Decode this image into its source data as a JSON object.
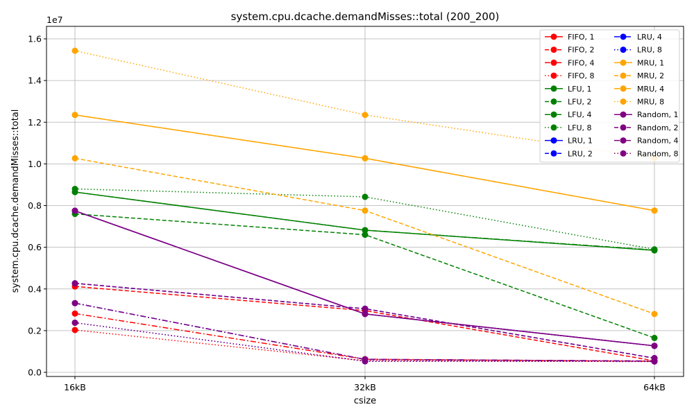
{
  "chart_data": {
    "type": "line",
    "title": "system.cpu.dcache.demandMisses::total (200_200)",
    "xlabel": "csize",
    "ylabel": "system.cpu.dcache.demandMisses::total",
    "y_offset_label": "1e7",
    "categories": [
      "16kB",
      "32kB",
      "64kB"
    ],
    "ylim": [
      0,
      16400000
    ],
    "yticks": [
      0,
      2000000,
      4000000,
      6000000,
      8000000,
      10000000,
      12000000,
      14000000,
      16000000
    ],
    "ytick_labels": [
      "0.0",
      "0.2",
      "0.4",
      "0.6",
      "0.8",
      "1.0",
      "1.2",
      "1.4",
      "1.6"
    ],
    "grid": true,
    "legend_position": "top-right",
    "legend_columns": 2,
    "colors": {
      "FIFO": "#ff0000",
      "LFU": "#008000",
      "LRU": "#0000ff",
      "MRU": "#ffa500",
      "Random": "#800080"
    },
    "series": [
      {
        "name": "FIFO, 1",
        "color": "#ff0000",
        "dash": "solid",
        "values": [
          7750000,
          2800000,
          1270000
        ]
      },
      {
        "name": "FIFO, 2",
        "color": "#ff0000",
        "dash": "dashed",
        "values": [
          4120000,
          2960000,
          550000
        ]
      },
      {
        "name": "FIFO, 4",
        "color": "#ff0000",
        "dash": "dashdot",
        "values": [
          2820000,
          630000,
          530000
        ]
      },
      {
        "name": "FIFO, 8",
        "color": "#ff0000",
        "dash": "dotted",
        "values": [
          2030000,
          560000,
          530000
        ]
      },
      {
        "name": "LFU, 1",
        "color": "#008000",
        "dash": "solid",
        "values": [
          8650000,
          6820000,
          5850000
        ]
      },
      {
        "name": "LFU, 2",
        "color": "#008000",
        "dash": "dashed",
        "values": [
          7600000,
          6600000,
          1650000
        ]
      },
      {
        "name": "LFU, 4",
        "color": "#008000",
        "dash": "dashdot",
        "values": [
          8650000,
          6820000,
          5870000
        ]
      },
      {
        "name": "LFU, 8",
        "color": "#008000",
        "dash": "dotted",
        "values": [
          8800000,
          8420000,
          5900000
        ]
      },
      {
        "name": "LRU, 1",
        "color": "#0000ff",
        "dash": "solid",
        "values": [
          7750000,
          2800000,
          1270000
        ]
      },
      {
        "name": "LRU, 2",
        "color": "#0000ff",
        "dash": "dashed",
        "values": [
          4270000,
          3050000,
          680000
        ]
      },
      {
        "name": "LRU, 4",
        "color": "#0000ff",
        "dash": "dashdot",
        "values": [
          3320000,
          620000,
          540000
        ]
      },
      {
        "name": "LRU, 8",
        "color": "#0000ff",
        "dash": "dotted",
        "values": [
          2380000,
          530000,
          520000
        ]
      },
      {
        "name": "MRU, 1",
        "color": "#ffa500",
        "dash": "solid",
        "values": [
          12350000,
          10270000,
          7760000
        ]
      },
      {
        "name": "MRU, 2",
        "color": "#ffa500",
        "dash": "dashed",
        "values": [
          10270000,
          7760000,
          2800000
        ]
      },
      {
        "name": "MRU, 4",
        "color": "#ffa500",
        "dash": "dashdot",
        "values": [
          12350000,
          10270000,
          7760000
        ]
      },
      {
        "name": "MRU, 8",
        "color": "#ffa500",
        "dash": "dotted",
        "values": [
          15430000,
          12350000,
          10270000
        ]
      },
      {
        "name": "Random, 1",
        "color": "#800080",
        "dash": "solid",
        "values": [
          7750000,
          2800000,
          1270000
        ]
      },
      {
        "name": "Random, 2",
        "color": "#800080",
        "dash": "dashed",
        "values": [
          4270000,
          3050000,
          680000
        ]
      },
      {
        "name": "Random, 4",
        "color": "#800080",
        "dash": "dashdot",
        "values": [
          3320000,
          620000,
          540000
        ]
      },
      {
        "name": "Random, 8",
        "color": "#800080",
        "dash": "dotted",
        "values": [
          2380000,
          530000,
          520000
        ]
      }
    ]
  }
}
